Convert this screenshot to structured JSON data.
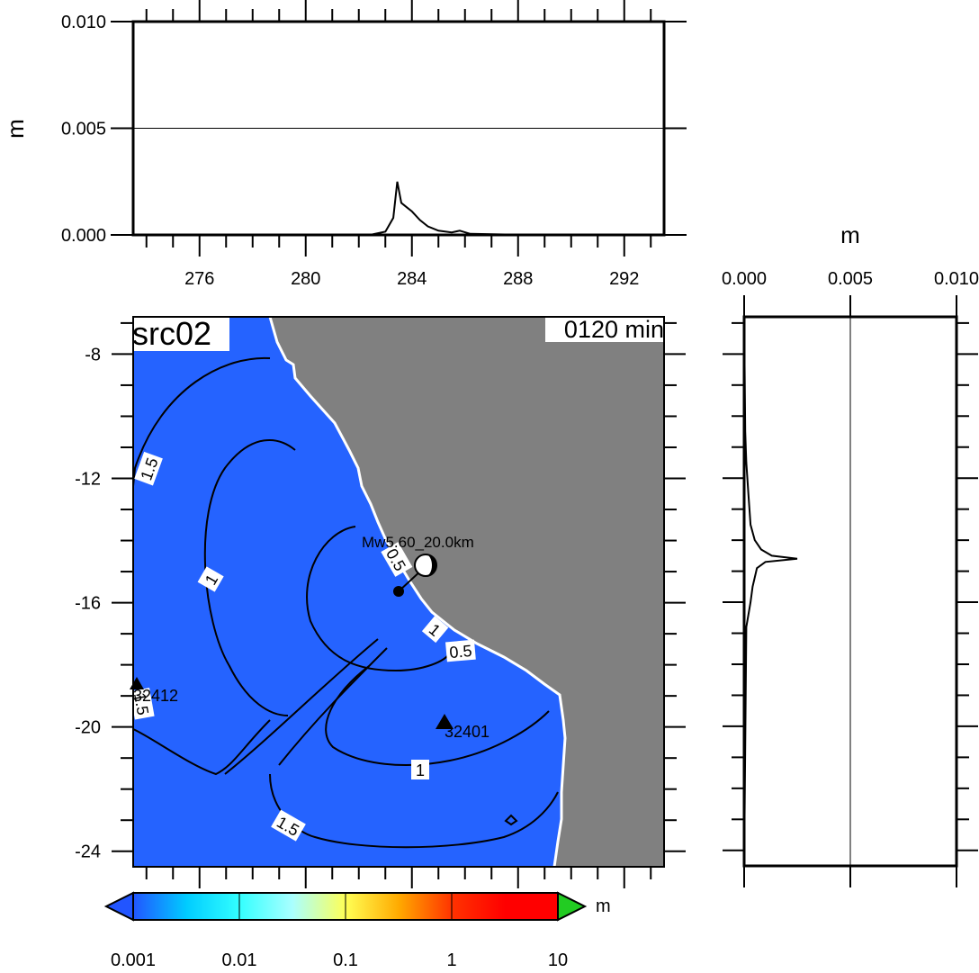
{
  "panel_label": "src02",
  "time_label": "0120 min",
  "unit": "m",
  "source_label": "Mw5.60_20.0km",
  "stations": [
    "32412",
    "32401"
  ],
  "colors": {
    "ocean": "#2563ff",
    "land": "#808080",
    "coast": "#ffffff",
    "colorbar": [
      "#2255ff",
      "#00ccff",
      "#33ffff",
      "#aaffff",
      "#ffff55",
      "#ffaa00",
      "#ff3300",
      "#ff0000"
    ],
    "over_triangle": "#22cc22",
    "under_triangle": "#2255ff"
  },
  "colorbar": {
    "ticks": [
      "0.001",
      "0.01",
      "0.1",
      "1",
      "10"
    ],
    "unit": "m"
  },
  "contour_labels": [
    "1.5",
    "1",
    "0.5",
    "1",
    "0.5",
    "1",
    "1.5",
    "1.5"
  ],
  "chart_data": [
    {
      "type": "line",
      "title": "",
      "xlabel": "",
      "ylabel": "m",
      "xlim": [
        273.5,
        293.5
      ],
      "ylim": [
        0,
        0.01
      ],
      "xticks": [
        "276",
        "280",
        "284",
        "288",
        "292"
      ],
      "yticks": [
        "0.000",
        "0.005",
        "0.010"
      ],
      "grid_y": [
        0.005
      ],
      "x": [
        273.5,
        281.0,
        282.5,
        283.0,
        283.3,
        283.45,
        283.6,
        283.8,
        284.0,
        284.3,
        284.6,
        285.0,
        285.5,
        285.8,
        286.2,
        287.5,
        290.0,
        293.5
      ],
      "y": [
        0,
        0,
        2e-05,
        0.00015,
        0.0008,
        0.0025,
        0.0015,
        0.0013,
        0.0011,
        0.0007,
        0.0004,
        0.0002,
        0.00012,
        0.0002,
        5e-05,
        2e-05,
        1e-05,
        0
      ]
    },
    {
      "type": "line",
      "title": "",
      "xlabel": "m",
      "ylabel": "",
      "xlim": [
        0,
        0.01
      ],
      "ylim": [
        -24.5,
        -6.8
      ],
      "xticks": [
        "0.000",
        "0.005",
        "0.010"
      ],
      "grid_x": [
        0.005
      ],
      "y": [
        -6.8,
        -10.5,
        -11.5,
        -12.5,
        -13.5,
        -14.0,
        -14.3,
        -14.5,
        -14.6,
        -14.7,
        -14.9,
        -15.5,
        -16.0,
        -16.8,
        -24.5
      ],
      "x": [
        0,
        5e-05,
        0.0001,
        0.0002,
        0.0003,
        0.0005,
        0.0008,
        0.0013,
        0.0025,
        0.001,
        0.0006,
        0.0004,
        0.0003,
        0.0001,
        0
      ]
    }
  ],
  "map": {
    "xlim": [
      273.5,
      293.5
    ],
    "ylim": [
      -24.5,
      -6.8
    ],
    "yticks": [
      "-8",
      "-12",
      "-16",
      "-20",
      "-24"
    ]
  }
}
